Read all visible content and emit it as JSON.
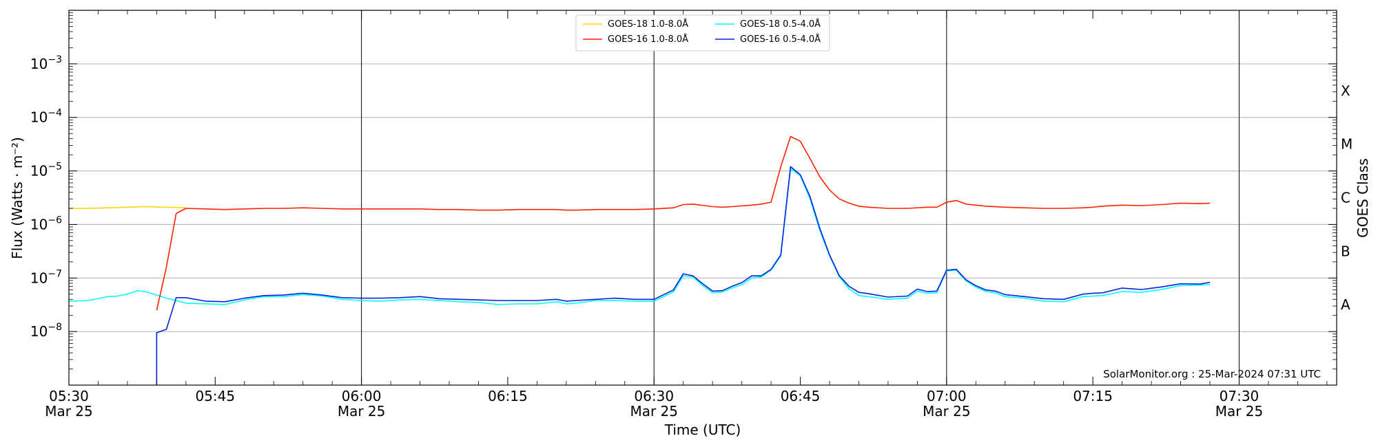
{
  "chart_data": {
    "type": "line",
    "xlabel": "Time (UTC)",
    "ylabel": "Flux (Watts · m⁻²)",
    "ylabel_right": "GOES Class",
    "y_scale": "log",
    "ylim": [
      1e-09,
      0.01
    ],
    "xlim": [
      "05:30",
      "07:40"
    ],
    "grid": "horizontal at decades",
    "vertical_markers": [
      "06:00",
      "06:30",
      "07:00",
      "07:30"
    ],
    "x_ticks": [
      {
        "value": "05:30",
        "line1": "05:30",
        "line2": "Mar 25"
      },
      {
        "value": "05:45",
        "line1": "05:45",
        "line2": ""
      },
      {
        "value": "06:00",
        "line1": "06:00",
        "line2": "Mar 25"
      },
      {
        "value": "06:15",
        "line1": "06:15",
        "line2": ""
      },
      {
        "value": "06:30",
        "line1": "06:30",
        "line2": "Mar 25"
      },
      {
        "value": "06:45",
        "line1": "06:45",
        "line2": ""
      },
      {
        "value": "07:00",
        "line1": "07:00",
        "line2": "Mar 25"
      },
      {
        "value": "07:15",
        "line1": "07:15",
        "line2": ""
      },
      {
        "value": "07:30",
        "line1": "07:30",
        "line2": "Mar 25"
      }
    ],
    "y_ticks": [
      {
        "value": 1e-08,
        "base": "10",
        "exp": "−8"
      },
      {
        "value": 1e-07,
        "base": "10",
        "exp": "−7"
      },
      {
        "value": 1e-06,
        "base": "10",
        "exp": "−6"
      },
      {
        "value": 1e-05,
        "base": "10",
        "exp": "−5"
      },
      {
        "value": 0.0001,
        "base": "10",
        "exp": "−4"
      },
      {
        "value": 0.001,
        "base": "10",
        "exp": "−3"
      }
    ],
    "goes_classes": [
      {
        "label": "A",
        "value": 3.16e-08
      },
      {
        "label": "B",
        "value": 3.16e-07
      },
      {
        "label": "C",
        "value": 3.16e-06
      },
      {
        "label": "M",
        "value": 3.16e-05
      },
      {
        "label": "X",
        "value": 0.000316
      }
    ],
    "legend": {
      "placement": "top-center"
    },
    "annotation": "SolarMonitor.org : 25-Mar-2024 07:31 UTC",
    "series": [
      {
        "name": "GOES-18 1.0-8.0Å",
        "color": "#ffd700",
        "x": [
          "05:30",
          "05:32",
          "05:34",
          "05:36",
          "05:38",
          "05:40",
          "05:42"
        ],
        "y": [
          2e-06,
          2e-06,
          2.05e-06,
          2.1e-06,
          2.15e-06,
          2.1e-06,
          2.05e-06
        ]
      },
      {
        "name": "GOES-18 0.5-4.0Å",
        "color": "#00ffff",
        "x": [
          "05:30",
          "05:32",
          "05:34",
          "05:35",
          "05:36",
          "05:37",
          "05:38",
          "05:39",
          "05:40",
          "05:41",
          "05:42",
          "05:44",
          "05:46",
          "05:48",
          "05:50",
          "05:52",
          "05:54",
          "05:56",
          "05:58",
          "06:00",
          "06:02",
          "06:04",
          "06:06",
          "06:08",
          "06:10",
          "06:12",
          "06:14",
          "06:16",
          "06:18",
          "06:20",
          "06:21",
          "06:22",
          "06:24",
          "06:26",
          "06:28",
          "06:30",
          "06:32",
          "06:33",
          "06:34",
          "06:35",
          "06:36",
          "06:37",
          "06:38",
          "06:39",
          "06:40",
          "06:41",
          "06:42",
          "06:43",
          "06:44",
          "06:45",
          "06:46",
          "06:47",
          "06:48",
          "06:49",
          "06:50",
          "06:51",
          "06:52",
          "06:54",
          "06:56",
          "06:57",
          "06:58",
          "06:59",
          "07:00",
          "07:01",
          "07:02",
          "07:03",
          "07:04",
          "07:05",
          "07:06",
          "07:08",
          "07:10",
          "07:12",
          "07:14",
          "07:15",
          "07:16",
          "07:18",
          "07:20",
          "07:22",
          "07:24",
          "07:26",
          "07:27"
        ],
        "y": [
          3.7e-08,
          3.8e-08,
          4.5e-08,
          4.6e-08,
          5e-08,
          5.8e-08,
          5.5e-08,
          4.8e-08,
          4.2e-08,
          3.8e-08,
          3.4e-08,
          3.3e-08,
          3.2e-08,
          3.9e-08,
          4.5e-08,
          4.5e-08,
          4.9e-08,
          4.6e-08,
          4e-08,
          3.8e-08,
          3.7e-08,
          3.9e-08,
          4e-08,
          3.8e-08,
          3.6e-08,
          3.5e-08,
          3.2e-08,
          3.3e-08,
          3.3e-08,
          3.6e-08,
          3.3e-08,
          3.4e-08,
          3.8e-08,
          3.8e-08,
          3.7e-08,
          3.7e-08,
          5.5e-08,
          1.1e-07,
          1.05e-07,
          7.2e-08,
          5.3e-08,
          5.5e-08,
          6.5e-08,
          7.5e-08,
          1e-07,
          1.05e-07,
          1.4e-07,
          2.6e-07,
          1.1e-05,
          8.2e-06,
          3e-06,
          7.8e-07,
          2.6e-07,
          1.05e-07,
          6.3e-08,
          4.7e-08,
          4.5e-08,
          4e-08,
          4.2e-08,
          5.7e-08,
          5.2e-08,
          5.3e-08,
          1.35e-07,
          1.4e-07,
          8.8e-08,
          6.8e-08,
          5.6e-08,
          5.3e-08,
          4.5e-08,
          4.2e-08,
          3.7e-08,
          3.6e-08,
          4.5e-08,
          4.6e-08,
          4.7e-08,
          5.6e-08,
          5.4e-08,
          6.1e-08,
          7.2e-08,
          7.4e-08,
          7.5e-08
        ]
      },
      {
        "name": "GOES-16 1.0-8.0Å",
        "color": "#ff2200",
        "x": [
          "05:39",
          "05:40",
          "05:41",
          "05:42",
          "05:44",
          "05:46",
          "05:48",
          "05:50",
          "05:52",
          "05:54",
          "05:56",
          "05:58",
          "06:00",
          "06:02",
          "06:04",
          "06:06",
          "06:08",
          "06:10",
          "06:12",
          "06:14",
          "06:16",
          "06:18",
          "06:20",
          "06:21",
          "06:22",
          "06:24",
          "06:26",
          "06:28",
          "06:30",
          "06:32",
          "06:33",
          "06:34",
          "06:36",
          "06:37",
          "06:38",
          "06:40",
          "06:41",
          "06:42",
          "06:43",
          "06:44",
          "06:45",
          "06:46",
          "06:47",
          "06:48",
          "06:49",
          "06:50",
          "06:51",
          "06:52",
          "06:54",
          "06:56",
          "06:58",
          "06:59",
          "07:00",
          "07:01",
          "07:02",
          "07:04",
          "07:06",
          "07:08",
          "07:10",
          "07:12",
          "07:14",
          "07:15",
          "07:16",
          "07:18",
          "07:20",
          "07:22",
          "07:24",
          "07:26",
          "07:27"
        ],
        "y": [
          2.5e-08,
          1.6e-07,
          1.6e-06,
          2e-06,
          1.95e-06,
          1.9e-06,
          1.95e-06,
          2e-06,
          2e-06,
          2.05e-06,
          2e-06,
          1.95e-06,
          1.95e-06,
          1.95e-06,
          1.95e-06,
          1.95e-06,
          1.9e-06,
          1.9e-06,
          1.85e-06,
          1.85e-06,
          1.9e-06,
          1.9e-06,
          1.9e-06,
          1.85e-06,
          1.85e-06,
          1.9e-06,
          1.9e-06,
          1.9e-06,
          1.95e-06,
          2.05e-06,
          2.35e-06,
          2.4e-06,
          2.15e-06,
          2.1e-06,
          2.15e-06,
          2.3e-06,
          2.4e-06,
          2.6e-06,
          1.2e-05,
          4.4e-05,
          3.6e-05,
          1.7e-05,
          7.8e-06,
          4.4e-06,
          3e-06,
          2.5e-06,
          2.2e-06,
          2.1e-06,
          2e-06,
          2e-06,
          2.1e-06,
          2.1e-06,
          2.6e-06,
          2.8e-06,
          2.4e-06,
          2.2e-06,
          2.1e-06,
          2.05e-06,
          2e-06,
          2e-06,
          2.05e-06,
          2.1e-06,
          2.2e-06,
          2.3e-06,
          2.25e-06,
          2.35e-06,
          2.5e-06,
          2.45e-06,
          2.5e-06
        ]
      },
      {
        "name": "GOES-16 0.5-4.0Å",
        "color": "#0022dd",
        "x": [
          "05:39",
          "05:39",
          "05:40",
          "05:41",
          "05:42",
          "05:44",
          "05:46",
          "05:48",
          "05:50",
          "05:52",
          "05:54",
          "05:56",
          "05:58",
          "06:00",
          "06:02",
          "06:04",
          "06:06",
          "06:08",
          "06:10",
          "06:12",
          "06:14",
          "06:16",
          "06:18",
          "06:20",
          "06:21",
          "06:22",
          "06:24",
          "06:26",
          "06:28",
          "06:30",
          "06:32",
          "06:33",
          "06:34",
          "06:35",
          "06:36",
          "06:37",
          "06:38",
          "06:39",
          "06:40",
          "06:41",
          "06:42",
          "06:43",
          "06:44",
          "06:45",
          "06:46",
          "06:47",
          "06:48",
          "06:49",
          "06:50",
          "06:51",
          "06:52",
          "06:54",
          "06:56",
          "06:57",
          "06:58",
          "06:59",
          "07:00",
          "07:01",
          "07:02",
          "07:03",
          "07:04",
          "07:05",
          "07:06",
          "07:08",
          "07:10",
          "07:12",
          "07:14",
          "07:15",
          "07:16",
          "07:18",
          "07:20",
          "07:22",
          "07:24",
          "07:26",
          "07:27"
        ],
        "y": [
          1e-09,
          9.5e-09,
          1.1e-08,
          4.3e-08,
          4.3e-08,
          3.7e-08,
          3.6e-08,
          4.2e-08,
          4.7e-08,
          4.8e-08,
          5.2e-08,
          4.8e-08,
          4.3e-08,
          4.2e-08,
          4.2e-08,
          4.3e-08,
          4.5e-08,
          4.1e-08,
          4e-08,
          3.9e-08,
          3.8e-08,
          3.8e-08,
          3.8e-08,
          4e-08,
          3.7e-08,
          3.8e-08,
          4e-08,
          4.2e-08,
          4e-08,
          4e-08,
          6e-08,
          1.2e-07,
          1.1e-07,
          7.8e-08,
          5.7e-08,
          5.8e-08,
          7e-08,
          8.2e-08,
          1.1e-07,
          1.1e-07,
          1.45e-07,
          2.7e-07,
          1.2e-05,
          8.5e-06,
          3.3e-06,
          8.5e-07,
          2.7e-07,
          1.1e-07,
          7e-08,
          5.4e-08,
          5.1e-08,
          4.4e-08,
          4.6e-08,
          6.2e-08,
          5.6e-08,
          5.7e-08,
          1.4e-07,
          1.45e-07,
          9.2e-08,
          7.2e-08,
          6e-08,
          5.7e-08,
          4.9e-08,
          4.5e-08,
          4.1e-08,
          4e-08,
          5e-08,
          5.2e-08,
          5.3e-08,
          6.5e-08,
          6.1e-08,
          6.8e-08,
          7.8e-08,
          7.7e-08,
          8.3e-08
        ]
      }
    ]
  }
}
